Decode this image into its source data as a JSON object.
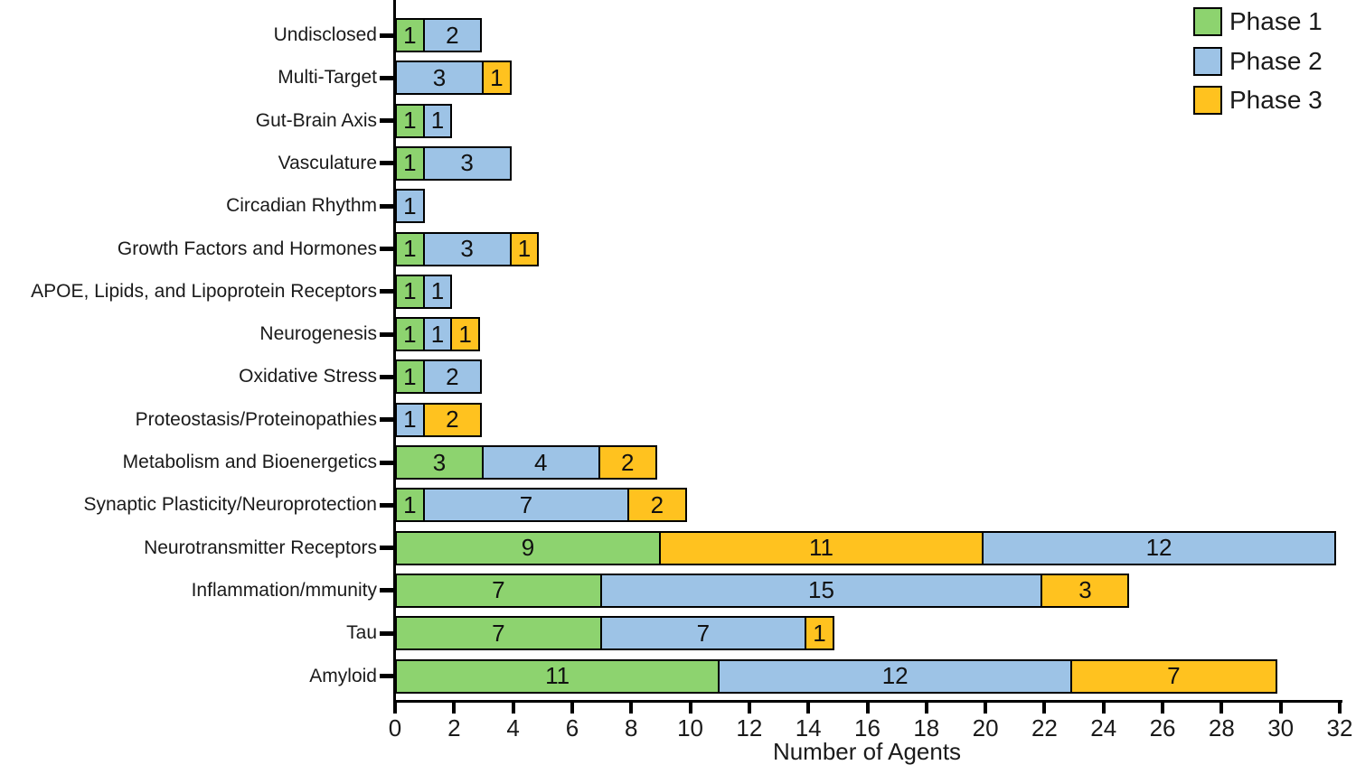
{
  "chart_data": {
    "type": "bar",
    "orientation": "horizontal",
    "stacked": true,
    "title": "",
    "xlabel": "Number of Agents",
    "xlim": [
      0,
      32
    ],
    "xtick_step": 2,
    "grid": false,
    "legend_position": "top-right",
    "phases": [
      {
        "name": "Phase 1",
        "color": "#8DD36F"
      },
      {
        "name": "Phase 2",
        "color": "#9DC3E6"
      },
      {
        "name": "Phase 3",
        "color": "#FFC21F"
      }
    ],
    "rows": [
      {
        "label": "Undisclosed",
        "segments": [
          {
            "phase": "Phase 1",
            "value": 1
          },
          {
            "phase": "Phase 2",
            "value": 2
          }
        ]
      },
      {
        "label": "Multi-Target",
        "segments": [
          {
            "phase": "Phase 2",
            "value": 3
          },
          {
            "phase": "Phase 3",
            "value": 1
          }
        ]
      },
      {
        "label": "Gut-Brain Axis",
        "segments": [
          {
            "phase": "Phase 1",
            "value": 1
          },
          {
            "phase": "Phase 2",
            "value": 1
          }
        ]
      },
      {
        "label": "Vasculature",
        "segments": [
          {
            "phase": "Phase 1",
            "value": 1
          },
          {
            "phase": "Phase 2",
            "value": 3
          }
        ]
      },
      {
        "label": "Circadian Rhythm",
        "segments": [
          {
            "phase": "Phase 2",
            "value": 1
          }
        ]
      },
      {
        "label": "Growth Factors and Hormones",
        "segments": [
          {
            "phase": "Phase 1",
            "value": 1
          },
          {
            "phase": "Phase 2",
            "value": 3
          },
          {
            "phase": "Phase 3",
            "value": 1
          }
        ]
      },
      {
        "label": "APOE, Lipids, and Lipoprotein Receptors",
        "segments": [
          {
            "phase": "Phase 1",
            "value": 1
          },
          {
            "phase": "Phase 2",
            "value": 1
          }
        ]
      },
      {
        "label": "Neurogenesis",
        "segments": [
          {
            "phase": "Phase 1",
            "value": 1
          },
          {
            "phase": "Phase 2",
            "value": 1
          },
          {
            "phase": "Phase 3",
            "value": 1
          }
        ]
      },
      {
        "label": "Oxidative Stress",
        "segments": [
          {
            "phase": "Phase 1",
            "value": 1
          },
          {
            "phase": "Phase 2",
            "value": 2
          }
        ]
      },
      {
        "label": "Proteostasis/Proteinopathies",
        "segments": [
          {
            "phase": "Phase 2",
            "value": 1
          },
          {
            "phase": "Phase 3",
            "value": 2
          }
        ]
      },
      {
        "label": "Metabolism and Bioenergetics",
        "segments": [
          {
            "phase": "Phase 1",
            "value": 3
          },
          {
            "phase": "Phase 2",
            "value": 4
          },
          {
            "phase": "Phase 3",
            "value": 2
          }
        ]
      },
      {
        "label": "Synaptic Plasticity/Neuroprotection",
        "segments": [
          {
            "phase": "Phase 1",
            "value": 1
          },
          {
            "phase": "Phase 2",
            "value": 7
          },
          {
            "phase": "Phase 3",
            "value": 2
          }
        ]
      },
      {
        "label": "Neurotransmitter Receptors",
        "segments": [
          {
            "phase": "Phase 1",
            "value": 9
          },
          {
            "phase": "Phase 3",
            "value": 11
          },
          {
            "phase": "Phase 2",
            "value": 12
          }
        ]
      },
      {
        "label": "Inflammation/mmunity",
        "segments": [
          {
            "phase": "Phase 1",
            "value": 7
          },
          {
            "phase": "Phase 2",
            "value": 15
          },
          {
            "phase": "Phase 3",
            "value": 3
          }
        ]
      },
      {
        "label": "Tau",
        "segments": [
          {
            "phase": "Phase 1",
            "value": 7
          },
          {
            "phase": "Phase 2",
            "value": 7
          },
          {
            "phase": "Phase 3",
            "value": 1
          }
        ]
      },
      {
        "label": "Amyloid",
        "segments": [
          {
            "phase": "Phase 1",
            "value": 11
          },
          {
            "phase": "Phase 2",
            "value": 12
          },
          {
            "phase": "Phase 3",
            "value": 7
          }
        ]
      }
    ]
  }
}
